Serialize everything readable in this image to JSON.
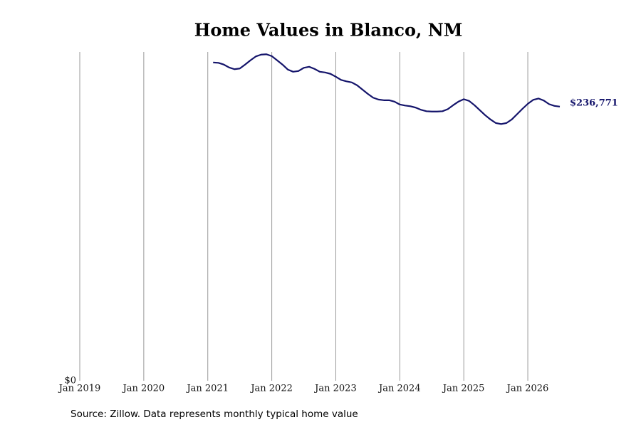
{
  "chart_data": {
    "type": "line",
    "title": "Home Values in Blanco, NM",
    "source": "Source: Zillow. Data represents monthly typical home value",
    "x": [
      "2021-02",
      "2021-03",
      "2021-04",
      "2021-05",
      "2021-06",
      "2021-07",
      "2021-08",
      "2021-09",
      "2021-10",
      "2021-11",
      "2021-12",
      "2022-01",
      "2022-02",
      "2022-03",
      "2022-04",
      "2022-05",
      "2022-06",
      "2022-07",
      "2022-08",
      "2022-09",
      "2022-10",
      "2022-11",
      "2022-12",
      "2023-01",
      "2023-02",
      "2023-03",
      "2023-04",
      "2023-05",
      "2023-06",
      "2023-07",
      "2023-08",
      "2023-09",
      "2023-10",
      "2023-11",
      "2023-12",
      "2024-01",
      "2024-02",
      "2024-03",
      "2024-04",
      "2024-05",
      "2024-06",
      "2024-07",
      "2024-08",
      "2024-09",
      "2024-10",
      "2024-11",
      "2024-12",
      "2025-01",
      "2025-02",
      "2025-03",
      "2025-04",
      "2025-05",
      "2025-06",
      "2025-07",
      "2025-08",
      "2025-09",
      "2025-10",
      "2025-11",
      "2025-12",
      "2026-01",
      "2026-02",
      "2026-03",
      "2026-04",
      "2026-05",
      "2026-06",
      "2026-07"
    ],
    "series": [
      {
        "name": "Typical home value",
        "color": "#14146b",
        "values": [
          274900,
          274600,
          273100,
          270600,
          269100,
          269700,
          273100,
          276800,
          280100,
          281700,
          282000,
          280400,
          276800,
          273100,
          268800,
          266900,
          267500,
          270300,
          271200,
          269400,
          266900,
          266300,
          265100,
          262600,
          259800,
          258600,
          257700,
          255200,
          251500,
          247800,
          244500,
          242900,
          242300,
          242300,
          241100,
          238600,
          237700,
          237100,
          235900,
          234000,
          232800,
          232500,
          232500,
          232800,
          234600,
          238000,
          241100,
          243200,
          241700,
          238000,
          233700,
          229400,
          225700,
          222600,
          221700,
          222600,
          225700,
          230300,
          234900,
          239200,
          242600,
          243800,
          242000,
          238900,
          237400,
          236771
        ],
        "value_labels": [
          null,
          null,
          null,
          null,
          null,
          null,
          null,
          null,
          null,
          null,
          null,
          null,
          null,
          null,
          null,
          null,
          null,
          null,
          null,
          null,
          null,
          null,
          null,
          null,
          null,
          null,
          null,
          null,
          null,
          null,
          null,
          null,
          null,
          null,
          null,
          null,
          null,
          null,
          null,
          null,
          null,
          null,
          null,
          null,
          null,
          null,
          null,
          null,
          null,
          null,
          null,
          null,
          null,
          null,
          null,
          null,
          null,
          null,
          null,
          null,
          null,
          null,
          null,
          null,
          null,
          "$236,771"
        ]
      }
    ],
    "xlim": [
      "2019-01",
      "2026-07"
    ],
    "xticks": [
      {
        "value": "2019-01",
        "label": "Jan 2019"
      },
      {
        "value": "2020-01",
        "label": "Jan 2020"
      },
      {
        "value": "2021-01",
        "label": "Jan 2021"
      },
      {
        "value": "2022-01",
        "label": "Jan 2022"
      },
      {
        "value": "2023-01",
        "label": "Jan 2023"
      },
      {
        "value": "2024-01",
        "label": "Jan 2024"
      },
      {
        "value": "2025-01",
        "label": "Jan 2025"
      },
      {
        "value": "2026-01",
        "label": "Jan 2026"
      }
    ],
    "ylim": [
      0,
      284000
    ],
    "yticks": [
      {
        "value": 0,
        "label": "$0"
      }
    ],
    "grid": true
  }
}
